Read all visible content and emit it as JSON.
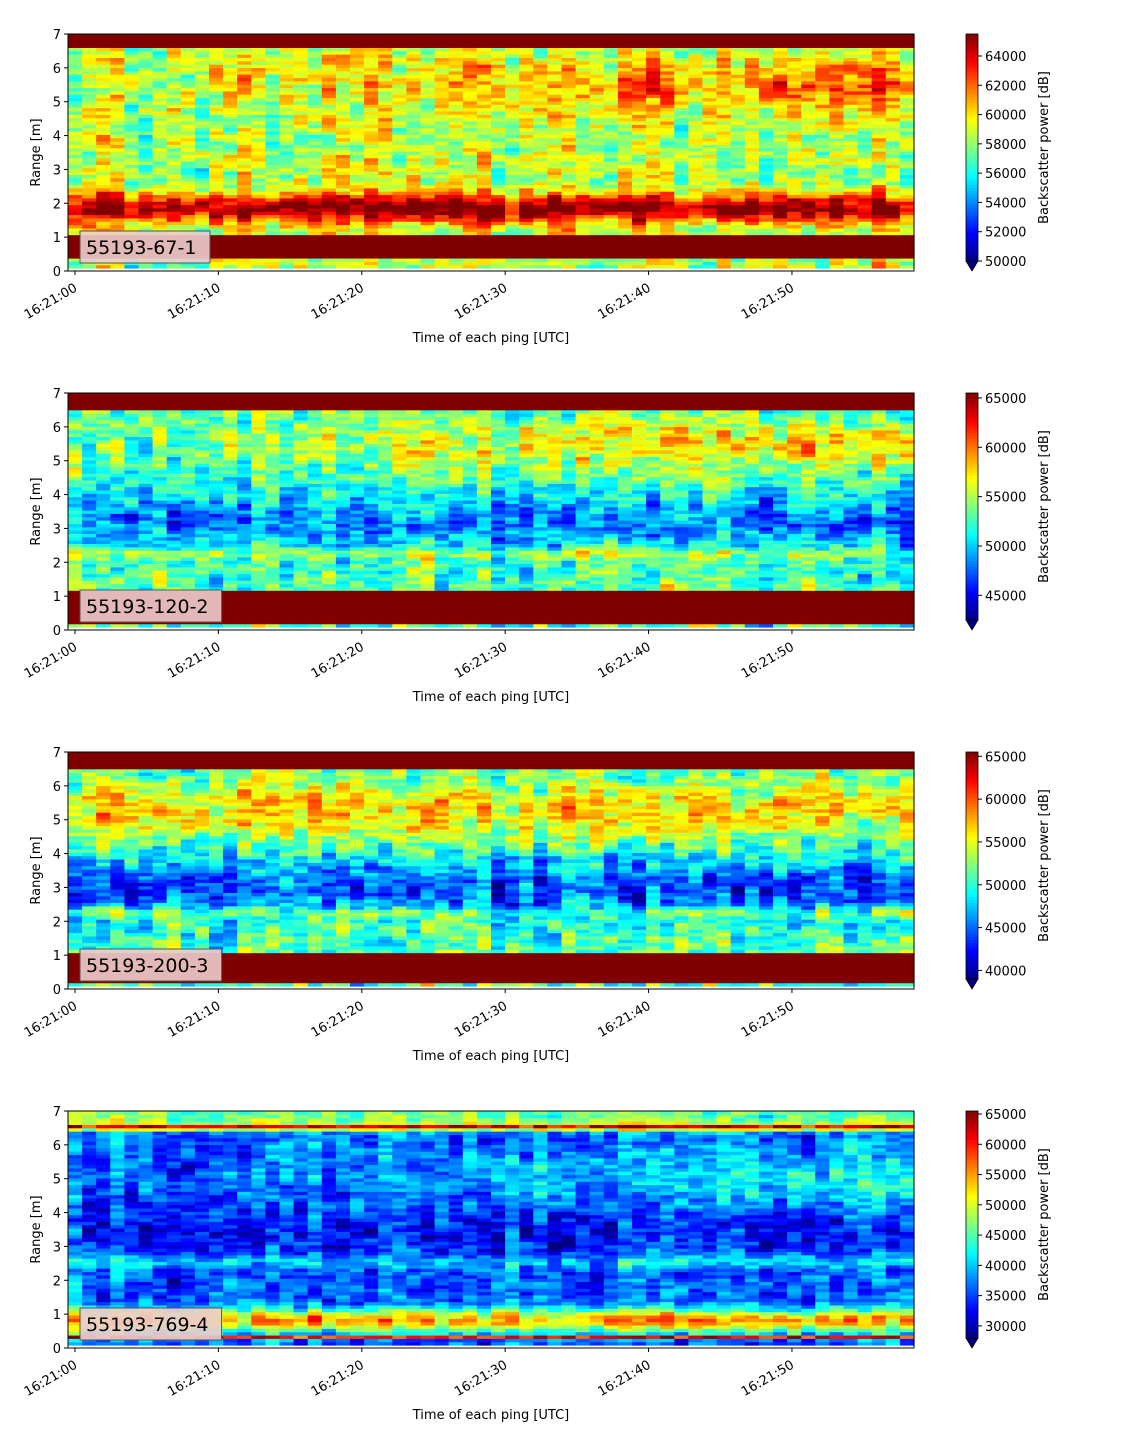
{
  "chart_data": [
    {
      "type": "heatmap",
      "panel_label": "55193-67-1",
      "xlabel": "Time of each ping [UTC]",
      "ylabel": "Range [m]",
      "x_ticks": [
        "16:21:00",
        "16:21:10",
        "16:21:20",
        "16:21:30",
        "16:21:40",
        "16:21:50"
      ],
      "xlim": [
        "16:21:00",
        "16:21:59"
      ],
      "ylim": [
        0,
        7
      ],
      "y_ticks": [
        0,
        1,
        2,
        3,
        4,
        5,
        6,
        7
      ],
      "colorbar": {
        "label": "Backscatter power [dB]",
        "vmin": 50000,
        "vmax": 65500,
        "ticks": [
          50000,
          52000,
          54000,
          56000,
          58000,
          60000,
          62000,
          64000
        ],
        "extend": "min",
        "colormap": "jet"
      }
    },
    {
      "type": "heatmap",
      "panel_label": "55193-120-2",
      "xlabel": "Time of each ping [UTC]",
      "ylabel": "Range [m]",
      "x_ticks": [
        "16:21:00",
        "16:21:10",
        "16:21:20",
        "16:21:30",
        "16:21:40",
        "16:21:50"
      ],
      "xlim": [
        "16:21:00",
        "16:21:59"
      ],
      "ylim": [
        0,
        7
      ],
      "y_ticks": [
        0,
        1,
        2,
        3,
        4,
        5,
        6,
        7
      ],
      "colorbar": {
        "label": "Backscatter power [dB]",
        "vmin": 42500,
        "vmax": 65500,
        "ticks": [
          45000,
          50000,
          55000,
          60000,
          65000
        ],
        "extend": "min",
        "colormap": "jet"
      }
    },
    {
      "type": "heatmap",
      "panel_label": "55193-200-3",
      "xlabel": "Time of each ping [UTC]",
      "ylabel": "Range [m]",
      "x_ticks": [
        "16:21:00",
        "16:21:10",
        "16:21:20",
        "16:21:30",
        "16:21:40",
        "16:21:50"
      ],
      "xlim": [
        "16:21:00",
        "16:21:59"
      ],
      "ylim": [
        0,
        7
      ],
      "y_ticks": [
        0,
        1,
        2,
        3,
        4,
        5,
        6,
        7
      ],
      "colorbar": {
        "label": "Backscatter power [dB]",
        "vmin": 39000,
        "vmax": 65500,
        "ticks": [
          40000,
          45000,
          50000,
          55000,
          60000,
          65000
        ],
        "extend": "min",
        "colormap": "jet"
      }
    },
    {
      "type": "heatmap",
      "panel_label": "55193-769-4",
      "xlabel": "Time of each ping [UTC]",
      "ylabel": "Range [m]",
      "x_ticks": [
        "16:21:00",
        "16:21:10",
        "16:21:20",
        "16:21:30",
        "16:21:40",
        "16:21:50"
      ],
      "xlim": [
        "16:21:00",
        "16:21:59"
      ],
      "ylim": [
        0,
        7
      ],
      "y_ticks": [
        0,
        1,
        2,
        3,
        4,
        5,
        6,
        7
      ],
      "colorbar": {
        "label": "Backscatter power [dB]",
        "vmin": 28000,
        "vmax": 65500,
        "ticks": [
          30000,
          35000,
          40000,
          45000,
          50000,
          55000,
          60000,
          65000
        ],
        "extend": "min",
        "colormap": "jet"
      }
    }
  ]
}
